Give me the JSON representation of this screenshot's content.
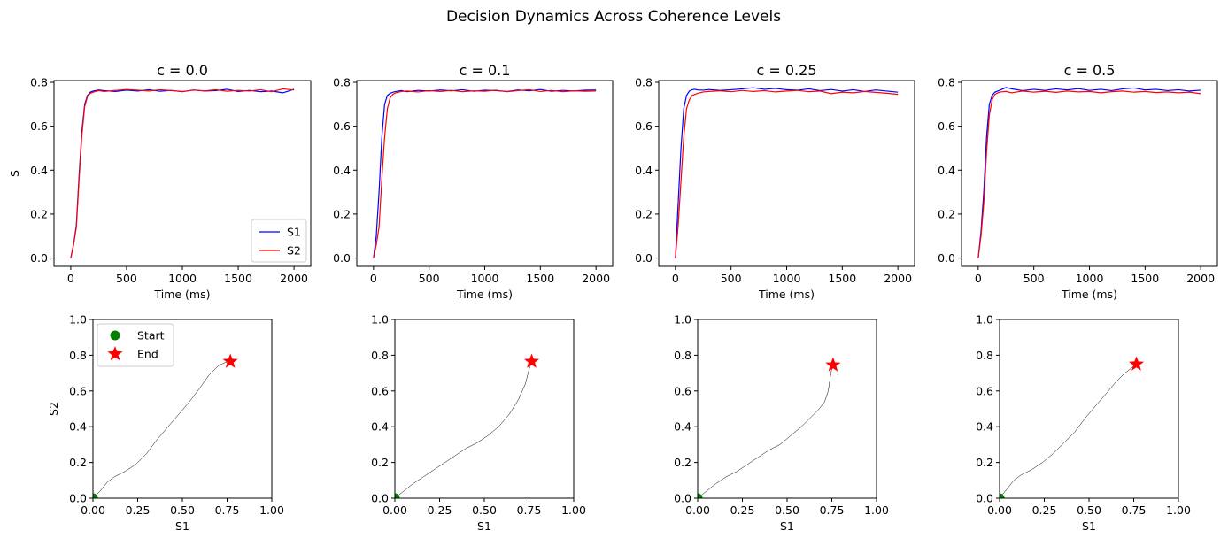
{
  "figure": {
    "suptitle": "Decision Dynamics Across Coherence Levels",
    "colors": {
      "s1": "#0000ff",
      "s2": "#ff0000",
      "trajectory": "#000000",
      "start": "#008000",
      "end": "#ff0000"
    }
  },
  "chart_data": [
    {
      "type": "line",
      "title": "c = 0.0",
      "xlabel": "Time (ms)",
      "ylabel": "S",
      "xlim": [
        -150,
        2150
      ],
      "ylim": [
        -0.038,
        0.808
      ],
      "xticks": [
        0,
        500,
        1000,
        1500,
        2000
      ],
      "yticks": [
        0.0,
        0.2,
        0.4,
        0.6,
        0.8
      ],
      "legend": "lower-right",
      "series": [
        {
          "name": "S1",
          "x": [
            0,
            25,
            50,
            75,
            100,
            125,
            150,
            175,
            200,
            250,
            300,
            400,
            500,
            600,
            700,
            800,
            900,
            1000,
            1100,
            1200,
            1300,
            1400,
            1500,
            1600,
            1700,
            1800,
            1900,
            2000
          ],
          "y": [
            0.0,
            0.06,
            0.15,
            0.38,
            0.58,
            0.7,
            0.74,
            0.755,
            0.76,
            0.765,
            0.762,
            0.758,
            0.764,
            0.76,
            0.766,
            0.759,
            0.763,
            0.757,
            0.765,
            0.76,
            0.762,
            0.768,
            0.758,
            0.763,
            0.757,
            0.76,
            0.752,
            0.768
          ]
        },
        {
          "name": "S2",
          "x": [
            0,
            25,
            50,
            75,
            100,
            125,
            150,
            175,
            200,
            250,
            300,
            400,
            500,
            600,
            700,
            800,
            900,
            1000,
            1100,
            1200,
            1300,
            1400,
            1500,
            1600,
            1700,
            1800,
            1900,
            2000
          ],
          "y": [
            0.0,
            0.06,
            0.14,
            0.36,
            0.56,
            0.69,
            0.735,
            0.75,
            0.755,
            0.762,
            0.758,
            0.763,
            0.767,
            0.764,
            0.76,
            0.766,
            0.762,
            0.758,
            0.764,
            0.761,
            0.766,
            0.759,
            0.763,
            0.76,
            0.766,
            0.757,
            0.77,
            0.765
          ]
        }
      ]
    },
    {
      "type": "line",
      "title": "c = 0.1",
      "xlabel": "Time (ms)",
      "ylabel": "",
      "xlim": [
        -150,
        2150
      ],
      "ylim": [
        -0.038,
        0.808
      ],
      "xticks": [
        0,
        500,
        1000,
        1500,
        2000
      ],
      "yticks": [
        0.0,
        0.2,
        0.4,
        0.6,
        0.8
      ],
      "series": [
        {
          "name": "S1",
          "x": [
            0,
            25,
            50,
            75,
            100,
            125,
            150,
            175,
            200,
            250,
            300,
            400,
            500,
            600,
            700,
            800,
            900,
            1000,
            1100,
            1200,
            1300,
            1400,
            1500,
            1600,
            1700,
            1800,
            1900,
            2000
          ],
          "y": [
            0.0,
            0.1,
            0.3,
            0.55,
            0.7,
            0.74,
            0.75,
            0.755,
            0.758,
            0.762,
            0.757,
            0.763,
            0.76,
            0.765,
            0.761,
            0.766,
            0.759,
            0.764,
            0.762,
            0.758,
            0.765,
            0.761,
            0.767,
            0.759,
            0.763,
            0.76,
            0.764,
            0.765
          ]
        },
        {
          "name": "S2",
          "x": [
            0,
            25,
            50,
            75,
            100,
            125,
            150,
            175,
            200,
            250,
            300,
            400,
            500,
            600,
            700,
            800,
            900,
            1000,
            1100,
            1200,
            1300,
            1400,
            1500,
            1600,
            1700,
            1800,
            1900,
            2000
          ],
          "y": [
            0.0,
            0.06,
            0.14,
            0.36,
            0.55,
            0.68,
            0.73,
            0.745,
            0.752,
            0.758,
            0.76,
            0.756,
            0.762,
            0.758,
            0.763,
            0.757,
            0.761,
            0.759,
            0.764,
            0.757,
            0.762,
            0.766,
            0.758,
            0.763,
            0.757,
            0.761,
            0.759,
            0.76
          ]
        }
      ]
    },
    {
      "type": "line",
      "title": "c = 0.25",
      "xlabel": "Time (ms)",
      "ylabel": "",
      "xlim": [
        -150,
        2150
      ],
      "ylim": [
        -0.038,
        0.808
      ],
      "xticks": [
        0,
        500,
        1000,
        1500,
        2000
      ],
      "yticks": [
        0.0,
        0.2,
        0.4,
        0.6,
        0.8
      ],
      "series": [
        {
          "name": "S1",
          "x": [
            0,
            25,
            50,
            75,
            100,
            125,
            150,
            175,
            200,
            250,
            300,
            400,
            500,
            600,
            700,
            800,
            900,
            1000,
            1100,
            1200,
            1300,
            1400,
            1500,
            1600,
            1700,
            1800,
            1900,
            2000
          ],
          "y": [
            0.0,
            0.25,
            0.5,
            0.68,
            0.74,
            0.76,
            0.766,
            0.768,
            0.765,
            0.764,
            0.767,
            0.763,
            0.766,
            0.77,
            0.775,
            0.768,
            0.772,
            0.766,
            0.764,
            0.77,
            0.762,
            0.767,
            0.76,
            0.766,
            0.758,
            0.765,
            0.76,
            0.755
          ]
        },
        {
          "name": "S2",
          "x": [
            0,
            25,
            50,
            75,
            100,
            125,
            150,
            175,
            200,
            250,
            300,
            400,
            500,
            600,
            700,
            800,
            900,
            1000,
            1100,
            1200,
            1300,
            1400,
            1500,
            1600,
            1700,
            1800,
            1900,
            2000
          ],
          "y": [
            0.0,
            0.15,
            0.35,
            0.55,
            0.68,
            0.72,
            0.74,
            0.745,
            0.75,
            0.756,
            0.758,
            0.761,
            0.757,
            0.763,
            0.758,
            0.762,
            0.756,
            0.76,
            0.763,
            0.757,
            0.76,
            0.748,
            0.755,
            0.752,
            0.758,
            0.754,
            0.75,
            0.745
          ]
        }
      ]
    },
    {
      "type": "line",
      "title": "c = 0.5",
      "xlabel": "Time (ms)",
      "ylabel": "",
      "xlim": [
        -150,
        2150
      ],
      "ylim": [
        -0.038,
        0.808
      ],
      "xticks": [
        0,
        500,
        1000,
        1500,
        2000
      ],
      "yticks": [
        0.0,
        0.2,
        0.4,
        0.6,
        0.8
      ],
      "series": [
        {
          "name": "S1",
          "x": [
            0,
            25,
            50,
            75,
            100,
            125,
            150,
            175,
            200,
            250,
            300,
            400,
            500,
            600,
            700,
            800,
            900,
            1000,
            1100,
            1200,
            1300,
            1400,
            1500,
            1600,
            1700,
            1800,
            1900,
            2000
          ],
          "y": [
            0.0,
            0.12,
            0.3,
            0.55,
            0.7,
            0.74,
            0.755,
            0.76,
            0.765,
            0.776,
            0.77,
            0.762,
            0.768,
            0.763,
            0.77,
            0.765,
            0.771,
            0.763,
            0.768,
            0.762,
            0.77,
            0.774,
            0.765,
            0.768,
            0.762,
            0.766,
            0.76,
            0.764
          ]
        },
        {
          "name": "S2",
          "x": [
            0,
            25,
            50,
            75,
            100,
            125,
            150,
            175,
            200,
            250,
            300,
            400,
            500,
            600,
            700,
            800,
            900,
            1000,
            1100,
            1200,
            1300,
            1400,
            1500,
            1600,
            1700,
            1800,
            1900,
            2000
          ],
          "y": [
            0.0,
            0.1,
            0.25,
            0.48,
            0.65,
            0.72,
            0.745,
            0.752,
            0.756,
            0.758,
            0.752,
            0.76,
            0.755,
            0.759,
            0.754,
            0.76,
            0.756,
            0.758,
            0.752,
            0.757,
            0.76,
            0.755,
            0.758,
            0.753,
            0.756,
            0.752,
            0.755,
            0.748
          ]
        }
      ]
    },
    {
      "type": "line",
      "title": "",
      "xlabel": "S1",
      "ylabel": "S2",
      "xlim": [
        0,
        1
      ],
      "ylim": [
        0,
        1
      ],
      "xticks": [
        0.0,
        0.25,
        0.5,
        0.75,
        1.0
      ],
      "yticks": [
        0.0,
        0.2,
        0.4,
        0.6,
        0.8,
        1.0
      ],
      "legend": "upper-left",
      "legend_entries": [
        "Start",
        "End"
      ],
      "trajectory": {
        "x": [
          0.0,
          0.04,
          0.08,
          0.12,
          0.18,
          0.24,
          0.3,
          0.36,
          0.42,
          0.48,
          0.54,
          0.6,
          0.65,
          0.7,
          0.74,
          0.77
        ],
        "y": [
          0.0,
          0.04,
          0.09,
          0.12,
          0.15,
          0.19,
          0.25,
          0.33,
          0.4,
          0.47,
          0.54,
          0.62,
          0.69,
          0.74,
          0.76,
          0.765
        ]
      },
      "start": [
        0.0,
        0.0
      ],
      "end": [
        0.768,
        0.765
      ]
    },
    {
      "type": "line",
      "title": "",
      "xlabel": "S1",
      "ylabel": "",
      "xlim": [
        0,
        1
      ],
      "ylim": [
        0,
        1
      ],
      "xticks": [
        0.0,
        0.25,
        0.5,
        0.75,
        1.0
      ],
      "yticks": [
        0.0,
        0.2,
        0.4,
        0.6,
        0.8,
        1.0
      ],
      "trajectory": {
        "x": [
          0.0,
          0.05,
          0.1,
          0.16,
          0.22,
          0.28,
          0.34,
          0.4,
          0.46,
          0.52,
          0.58,
          0.64,
          0.69,
          0.73,
          0.75,
          0.765
        ],
        "y": [
          0.0,
          0.04,
          0.08,
          0.12,
          0.16,
          0.2,
          0.24,
          0.28,
          0.31,
          0.35,
          0.4,
          0.47,
          0.55,
          0.64,
          0.72,
          0.76
        ]
      },
      "start": [
        0.0,
        0.0
      ],
      "end": [
        0.765,
        0.765
      ]
    },
    {
      "type": "line",
      "title": "",
      "xlabel": "S1",
      "ylabel": "",
      "xlim": [
        0,
        1
      ],
      "ylim": [
        0,
        1
      ],
      "xticks": [
        0.0,
        0.25,
        0.5,
        0.75,
        1.0
      ],
      "yticks": [
        0.0,
        0.2,
        0.4,
        0.6,
        0.8,
        1.0
      ],
      "trajectory": {
        "x": [
          0.0,
          0.05,
          0.1,
          0.16,
          0.22,
          0.28,
          0.34,
          0.4,
          0.46,
          0.52,
          0.58,
          0.63,
          0.68,
          0.71,
          0.73,
          0.745,
          0.755
        ],
        "y": [
          0.0,
          0.04,
          0.08,
          0.12,
          0.15,
          0.19,
          0.23,
          0.27,
          0.3,
          0.35,
          0.4,
          0.45,
          0.5,
          0.54,
          0.6,
          0.7,
          0.745
        ]
      },
      "start": [
        0.0,
        0.0
      ],
      "end": [
        0.757,
        0.745
      ]
    },
    {
      "type": "line",
      "title": "",
      "xlabel": "S1",
      "ylabel": "",
      "xlim": [
        0,
        1
      ],
      "ylim": [
        0,
        1
      ],
      "xticks": [
        0.0,
        0.25,
        0.5,
        0.75,
        1.0
      ],
      "yticks": [
        0.0,
        0.2,
        0.4,
        0.6,
        0.8,
        1.0
      ],
      "trajectory": {
        "x": [
          0.0,
          0.04,
          0.08,
          0.12,
          0.18,
          0.24,
          0.3,
          0.36,
          0.42,
          0.48,
          0.54,
          0.6,
          0.65,
          0.7,
          0.74,
          0.765
        ],
        "y": [
          0.0,
          0.05,
          0.1,
          0.13,
          0.16,
          0.2,
          0.25,
          0.31,
          0.37,
          0.45,
          0.52,
          0.59,
          0.65,
          0.7,
          0.73,
          0.75
        ]
      },
      "start": [
        0.0,
        0.0
      ],
      "end": [
        0.765,
        0.75
      ]
    }
  ]
}
